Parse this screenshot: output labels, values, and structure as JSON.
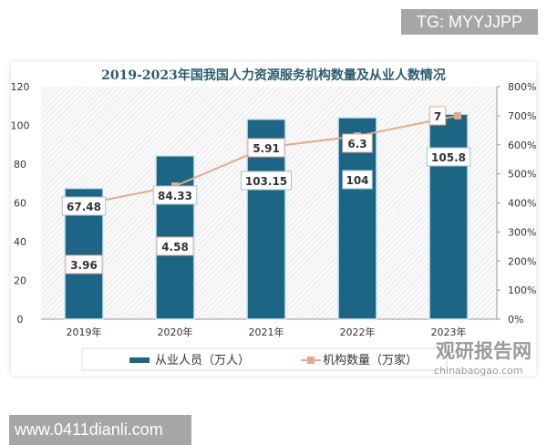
{
  "watermark_top": "TG: MYYJJPP",
  "watermark_bottom": "www.0411dianli.com",
  "logo": {
    "name": "观研报告网",
    "url_text": "chinabaogao.com"
  },
  "chart_data": {
    "type": "bar+line",
    "title": "2019-2023年国我国人力资源服务机构数量及从业人数情况",
    "categories": [
      "2019年",
      "2020年",
      "2021年",
      "2022年",
      "2023年"
    ],
    "series": [
      {
        "name": "从业人员（万人）",
        "type": "bar",
        "axis": "left",
        "values": [
          67.48,
          84.33,
          103.15,
          104,
          105.8
        ],
        "color": "#1d6585"
      },
      {
        "name": "机构数量（万家）",
        "type": "line",
        "axis": "right",
        "values": [
          3.96,
          4.58,
          5.91,
          6.3,
          7
        ],
        "color": "#e8a88c"
      }
    ],
    "y_left": {
      "ylim": [
        0,
        120
      ],
      "ticks": [
        "0",
        "20",
        "40",
        "60",
        "80",
        "100",
        "120"
      ]
    },
    "y_right": {
      "ylim": [
        0,
        800
      ],
      "ticks": [
        "0%",
        "100%",
        "200%",
        "300%",
        "400%",
        "500%",
        "600%",
        "700%",
        "800%"
      ]
    },
    "legend_placement": "bottom",
    "grid": false
  }
}
